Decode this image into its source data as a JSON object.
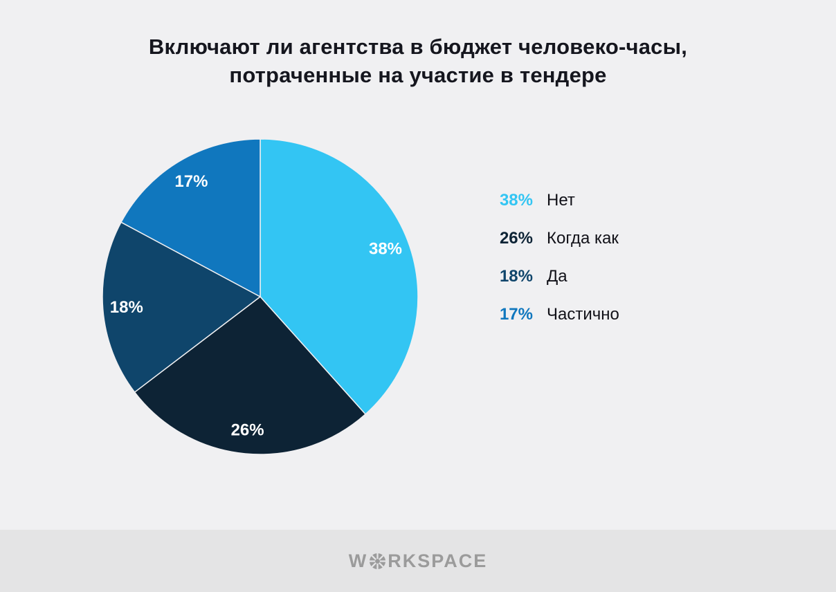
{
  "page": {
    "background": "#F0F0F2",
    "footer_background": "#E4E4E5"
  },
  "title": {
    "line1": "Включают ли агентства в бюджет человеко-часы,",
    "line2": "потраченные на участие в тендере"
  },
  "chart_data": {
    "type": "pie",
    "title": "Включают ли агентства в бюджет человеко-часы, потраченные на участие в тендере",
    "slices": [
      {
        "label": "Нет",
        "value": 38,
        "color": "#33C5F3"
      },
      {
        "label": "Когда как",
        "value": 26,
        "color": "#0D2335"
      },
      {
        "label": "Да",
        "value": 18,
        "color": "#0F456B"
      },
      {
        "label": "Частично",
        "value": 17,
        "color": "#1077BE"
      }
    ],
    "value_suffix": "%",
    "start_angle": "top",
    "direction": "clockwise",
    "slice_label_color": "#FFFFFF",
    "legend_position": "right",
    "legend_label_color": "#111118"
  },
  "footer": {
    "brand_prefix": "W",
    "brand_suffix": "RKSPACE"
  }
}
